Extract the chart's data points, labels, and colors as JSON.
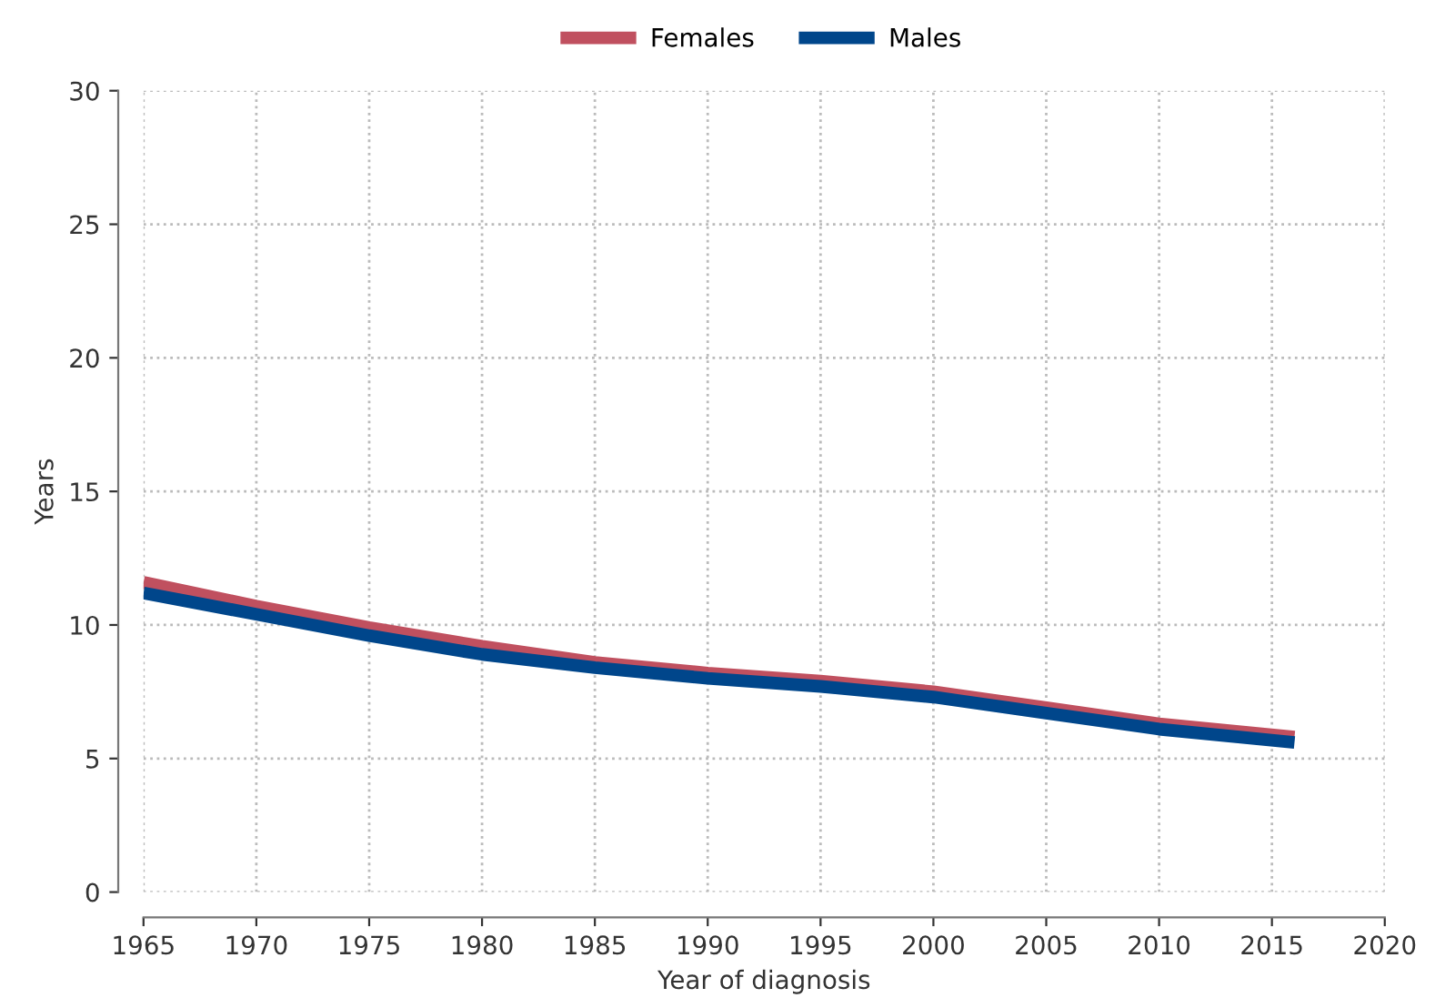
{
  "chart_data": {
    "type": "line",
    "xlabel": "Year of diagnosis",
    "ylabel": "Years",
    "x": [
      1965,
      1970,
      1975,
      1980,
      1985,
      1990,
      1995,
      2000,
      2005,
      2010,
      2016
    ],
    "series": [
      {
        "name": "Females",
        "color": "#c0505f",
        "values": [
          11.6,
          10.7,
          9.9,
          9.2,
          8.6,
          8.2,
          7.9,
          7.5,
          6.9,
          6.3,
          5.8
        ]
      },
      {
        "name": "Males",
        "color": "#00468b",
        "values": [
          11.2,
          10.4,
          9.6,
          8.9,
          8.4,
          8.0,
          7.7,
          7.3,
          6.7,
          6.1,
          5.6
        ]
      }
    ],
    "xlim": [
      1965,
      2020
    ],
    "xticks": [
      1965,
      1970,
      1975,
      1980,
      1985,
      1990,
      1995,
      2000,
      2005,
      2010,
      2015,
      2020
    ],
    "ylim": [
      0,
      30
    ],
    "yticks": [
      0,
      5,
      10,
      15,
      20,
      25,
      30
    ],
    "grid": true,
    "legend": "top",
    "marker": "none",
    "line_style": "solid"
  }
}
